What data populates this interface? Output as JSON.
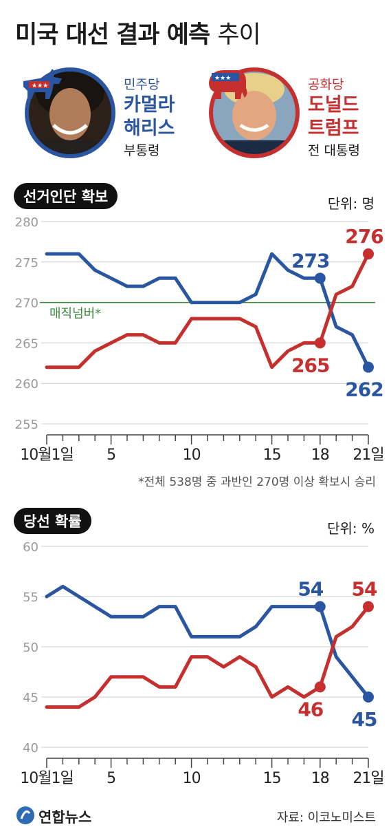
{
  "title": {
    "main": "미국 대선 결과 예측",
    "sub": "추이"
  },
  "candidates": {
    "democrat": {
      "party": "민주당",
      "name_line1": "카멀라",
      "name_line2": "해리스",
      "role": "부통령",
      "color": "#2a55a0",
      "icon": "donkey-icon"
    },
    "republican": {
      "party": "공화당",
      "name_line1": "도널드",
      "name_line2": "트럼프",
      "role": "전 대통령",
      "color": "#c5302f",
      "icon": "elephant-icon"
    }
  },
  "sections": {
    "electoral": {
      "label": "선거인단 확보",
      "unit": "단위: 명"
    },
    "probability": {
      "label": "당선 확률",
      "unit": "단위: %"
    }
  },
  "footnote": "*전체 538명 중 과반인 270명 이상 확보시 승리",
  "magic_number_label": "매직넘버*",
  "source": "자료: 이코노미스트",
  "logo": "연합뉴스",
  "chart_data": [
    {
      "type": "line",
      "title": "선거인단 확보",
      "x": [
        1,
        2,
        3,
        4,
        5,
        6,
        7,
        8,
        9,
        10,
        11,
        12,
        13,
        14,
        15,
        16,
        17,
        18,
        19,
        20,
        21
      ],
      "x_tick_labels": [
        "10월1일",
        "5",
        "10",
        "15",
        "18",
        "21일"
      ],
      "x_ticks": [
        1,
        5,
        10,
        15,
        18,
        21
      ],
      "ylim": [
        255,
        280
      ],
      "y_ticks": [
        255,
        260,
        265,
        270,
        275,
        280
      ],
      "reference_line": {
        "value": 270,
        "label": "매직넘버*",
        "color": "#3a8a3a"
      },
      "series": [
        {
          "party": "democrat",
          "color": "#2a55a0",
          "values": [
            276,
            276,
            276,
            274,
            273,
            272,
            272,
            273,
            273,
            270,
            270,
            270,
            270,
            271,
            276,
            274,
            273,
            273,
            267,
            266,
            262
          ],
          "labels": [
            {
              "x": 18,
              "text": "273"
            },
            {
              "x": 21,
              "text": "262"
            }
          ]
        },
        {
          "party": "republican",
          "color": "#c5302f",
          "values": [
            262,
            262,
            262,
            264,
            265,
            266,
            266,
            265,
            265,
            268,
            268,
            268,
            268,
            267,
            262,
            264,
            265,
            265,
            271,
            272,
            276
          ],
          "labels": [
            {
              "x": 18,
              "text": "265"
            },
            {
              "x": 21,
              "text": "276"
            }
          ]
        }
      ]
    },
    {
      "type": "line",
      "title": "당선 확률",
      "x": [
        1,
        2,
        3,
        4,
        5,
        6,
        7,
        8,
        9,
        10,
        11,
        12,
        13,
        14,
        15,
        16,
        17,
        18,
        19,
        20,
        21
      ],
      "x_tick_labels": [
        "10월1일",
        "5",
        "10",
        "15",
        "18",
        "21일"
      ],
      "x_ticks": [
        1,
        5,
        10,
        15,
        18,
        21
      ],
      "ylim": [
        40,
        60
      ],
      "y_ticks": [
        40,
        45,
        50,
        55,
        60
      ],
      "series": [
        {
          "party": "democrat",
          "color": "#2a55a0",
          "values": [
            55,
            56,
            55,
            54,
            53,
            53,
            53,
            54,
            54,
            51,
            51,
            51,
            51,
            52,
            54,
            54,
            54,
            54,
            49,
            47,
            45
          ],
          "labels": [
            {
              "x": 18,
              "text": "54"
            },
            {
              "x": 21,
              "text": "45"
            }
          ]
        },
        {
          "party": "republican",
          "color": "#c5302f",
          "values": [
            44,
            44,
            44,
            45,
            47,
            47,
            47,
            46,
            46,
            49,
            49,
            48,
            49,
            48,
            45,
            46,
            45,
            46,
            51,
            52,
            54
          ],
          "labels": [
            {
              "x": 18,
              "text": "46"
            },
            {
              "x": 21,
              "text": "54"
            }
          ]
        }
      ]
    }
  ]
}
